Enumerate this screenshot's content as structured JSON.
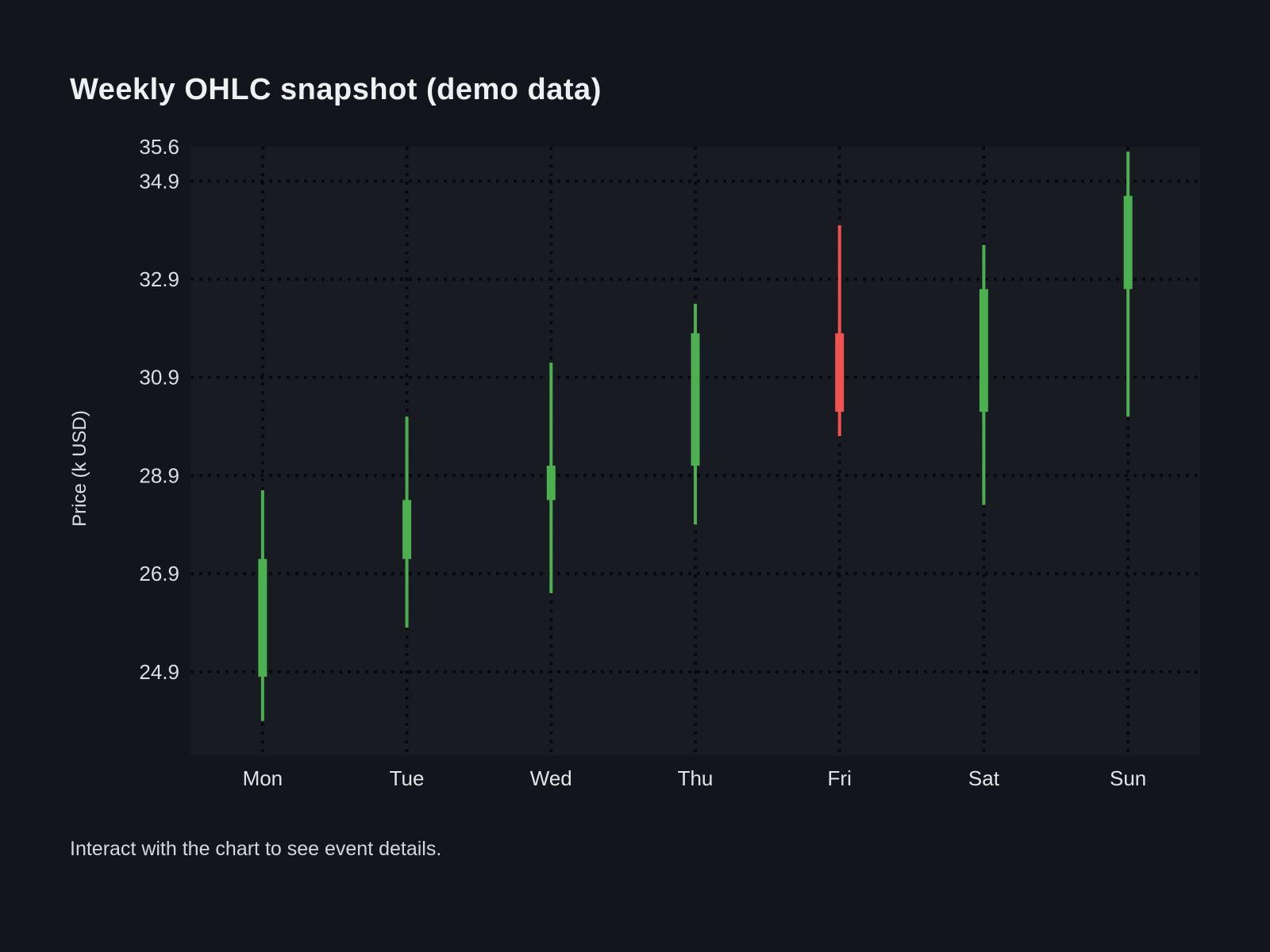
{
  "page": {
    "title": "Weekly OHLC snapshot (demo data)",
    "caption": "Interact with the chart to see event details.",
    "background_color": "#12151b",
    "plot_background_color": "#181b22",
    "text_color": "#dcdee3",
    "title_color": "#eef0f3"
  },
  "chart_data": {
    "type": "candlestick",
    "title": "Weekly OHLC snapshot (demo data)",
    "xlabel": "",
    "ylabel": "Price (k USD)",
    "categories": [
      "Mon",
      "Tue",
      "Wed",
      "Thu",
      "Fri",
      "Sat",
      "Sun"
    ],
    "ohlc": [
      {
        "day": "Mon",
        "open": 24.8,
        "high": 28.6,
        "low": 23.9,
        "close": 27.2,
        "direction": "up"
      },
      {
        "day": "Tue",
        "open": 27.2,
        "high": 30.1,
        "low": 25.8,
        "close": 28.4,
        "direction": "up"
      },
      {
        "day": "Wed",
        "open": 28.4,
        "high": 31.2,
        "low": 26.5,
        "close": 29.1,
        "direction": "up"
      },
      {
        "day": "Thu",
        "open": 29.1,
        "high": 32.4,
        "low": 27.9,
        "close": 31.8,
        "direction": "up"
      },
      {
        "day": "Fri",
        "open": 31.8,
        "high": 34.0,
        "low": 29.7,
        "close": 30.2,
        "direction": "down"
      },
      {
        "day": "Sat",
        "open": 30.2,
        "high": 33.6,
        "low": 28.3,
        "close": 32.7,
        "direction": "up"
      },
      {
        "day": "Sun",
        "open": 32.7,
        "high": 35.5,
        "low": 30.1,
        "close": 34.6,
        "direction": "up"
      }
    ],
    "ylim": [
      23.2,
      35.6
    ],
    "yticks": [
      {
        "label": "35.6",
        "value": 35.6,
        "gridline": false
      },
      {
        "label": "34.9",
        "value": 34.9,
        "gridline": true
      },
      {
        "label": "32.9",
        "value": 32.9,
        "gridline": true
      },
      {
        "label": "30.9",
        "value": 30.9,
        "gridline": true
      },
      {
        "label": "28.9",
        "value": 28.9,
        "gridline": true
      },
      {
        "label": "26.9",
        "value": 26.9,
        "gridline": true
      },
      {
        "label": "24.9",
        "value": 24.9,
        "gridline": true
      }
    ],
    "grid": "dotted",
    "gridline_color": "#07090d",
    "up_color": "#4caf50",
    "down_color": "#ef5350",
    "legend_position": "none"
  }
}
